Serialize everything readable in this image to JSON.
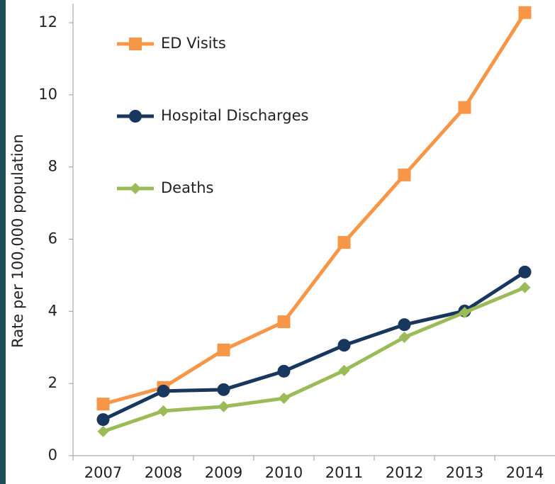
{
  "chart_data": {
    "type": "line",
    "y_label": "Rate per 100,000 population",
    "categories": [
      "2007",
      "2008",
      "2009",
      "2010",
      "2011",
      "2012",
      "2013",
      "2014"
    ],
    "series": [
      {
        "name": "ED Visits",
        "color": "#f79646",
        "marker": "square",
        "values": [
          1.43,
          1.89,
          2.93,
          3.71,
          5.91,
          7.78,
          9.65,
          12.28
        ]
      },
      {
        "name": "Hospital Discharges",
        "color": "#17375e",
        "marker": "circle",
        "values": [
          1.0,
          1.79,
          1.83,
          2.34,
          3.06,
          3.63,
          4.01,
          5.09
        ]
      },
      {
        "name": "Deaths",
        "color": "#9bbb59",
        "marker": "diamond",
        "values": [
          0.67,
          1.24,
          1.36,
          1.59,
          2.36,
          3.28,
          3.97,
          4.66
        ]
      }
    ],
    "ylim": [
      0,
      12
    ],
    "yticks": [
      0,
      2,
      4,
      6,
      8,
      10,
      12
    ],
    "grid": false
  }
}
